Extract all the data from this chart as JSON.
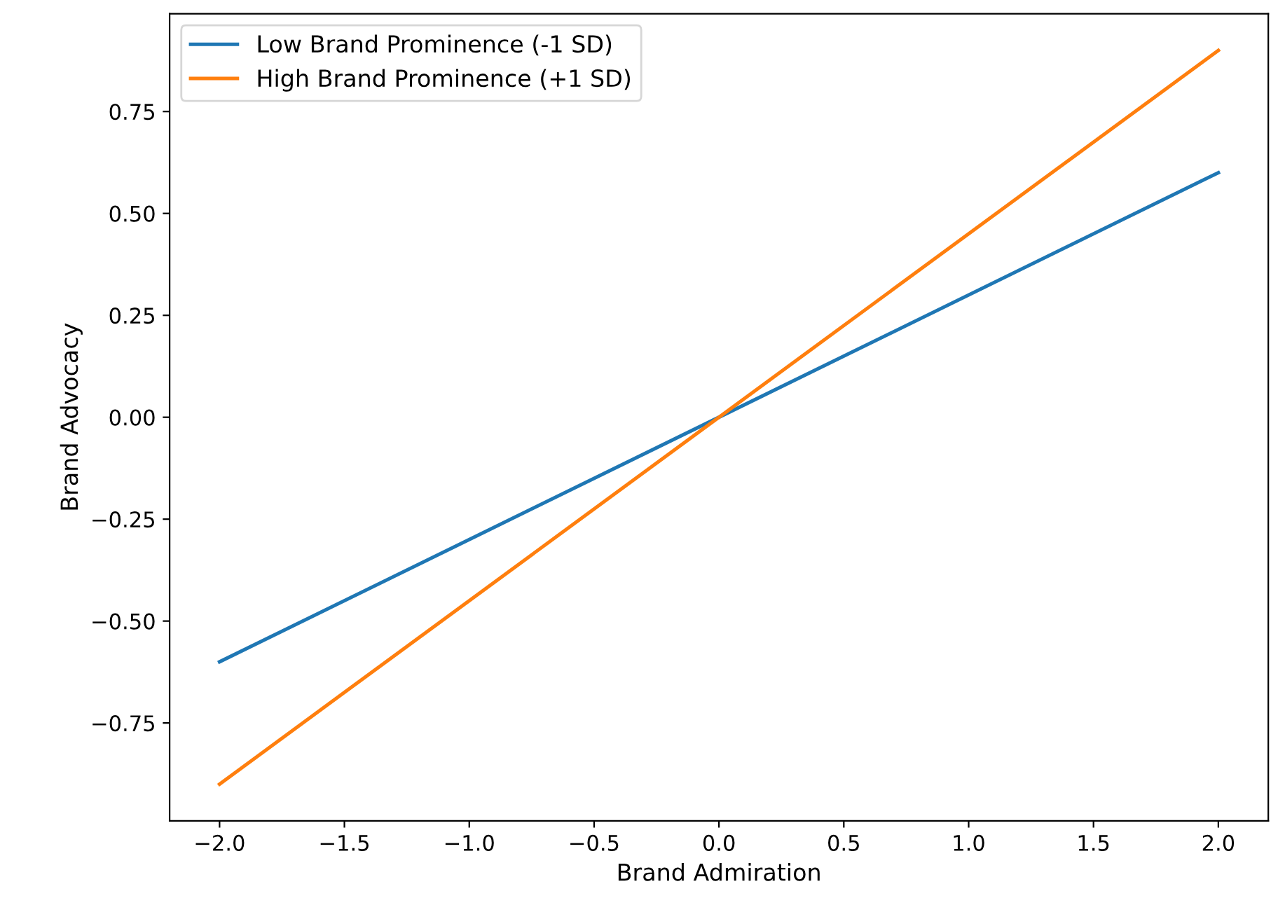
{
  "chart_data": {
    "type": "line",
    "xlabel": "Brand Admiration",
    "ylabel": "Brand Advocacy",
    "x": [
      -2.0,
      2.0
    ],
    "series": [
      {
        "name": "Low Brand Prominence (-1 SD)",
        "color": "#1f77b4",
        "values": [
          -0.6,
          0.6
        ]
      },
      {
        "name": "High Brand Prominence (+1 SD)",
        "color": "#ff7f0e",
        "values": [
          -0.9,
          0.9
        ]
      }
    ],
    "xlim": [
      -2.2,
      2.2
    ],
    "ylim": [
      -0.99,
      0.99
    ],
    "xticks": [
      {
        "value": -2.0,
        "label": "−2.0"
      },
      {
        "value": -1.5,
        "label": "−1.5"
      },
      {
        "value": -1.0,
        "label": "−1.0"
      },
      {
        "value": -0.5,
        "label": "−0.5"
      },
      {
        "value": 0.0,
        "label": "0.0"
      },
      {
        "value": 0.5,
        "label": "0.5"
      },
      {
        "value": 1.0,
        "label": "1.0"
      },
      {
        "value": 1.5,
        "label": "1.5"
      },
      {
        "value": 2.0,
        "label": "2.0"
      }
    ],
    "yticks": [
      {
        "value": -0.75,
        "label": "−0.75"
      },
      {
        "value": -0.5,
        "label": "−0.50"
      },
      {
        "value": -0.25,
        "label": "−0.25"
      },
      {
        "value": 0.0,
        "label": "0.00"
      },
      {
        "value": 0.25,
        "label": "0.25"
      },
      {
        "value": 0.5,
        "label": "0.50"
      },
      {
        "value": 0.75,
        "label": "0.75"
      }
    ],
    "legend": "top left",
    "grid": false
  }
}
